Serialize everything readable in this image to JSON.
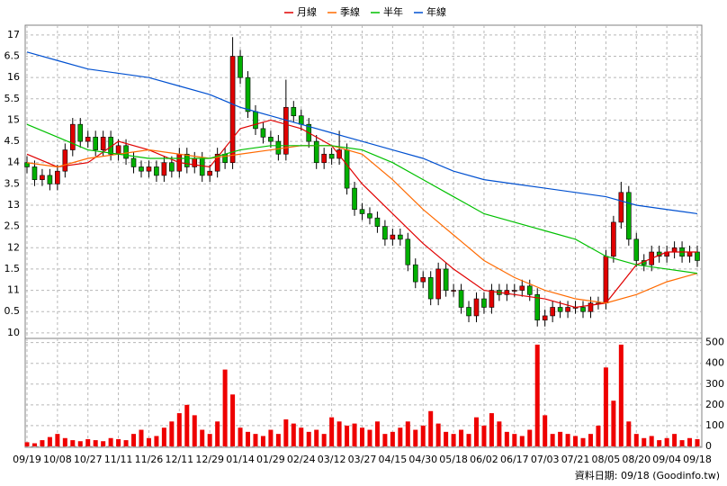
{
  "chart_data": {
    "type": "candlestick",
    "legend": "top",
    "up_color": "#e00000",
    "down_color": "#00b000",
    "volume_color": "#ee0000",
    "footer": "資料日期: 09/18 (Goodinfo.tw)",
    "categories": [
      "09/19",
      null,
      null,
      null,
      "10/08",
      null,
      null,
      null,
      "10/27",
      null,
      null,
      null,
      "11/11",
      null,
      null,
      null,
      "11/26",
      null,
      null,
      null,
      "12/11",
      null,
      null,
      null,
      "12/29",
      null,
      null,
      null,
      "01/14",
      null,
      null,
      null,
      "01/29",
      null,
      null,
      null,
      "02/24",
      null,
      null,
      null,
      "03/12",
      null,
      null,
      null,
      "03/27",
      null,
      null,
      null,
      "04/15",
      null,
      null,
      null,
      "04/30",
      null,
      null,
      null,
      "05/18",
      null,
      null,
      null,
      "06/02",
      null,
      null,
      null,
      "06/17",
      null,
      null,
      null,
      "07/03",
      null,
      null,
      null,
      "07/21",
      null,
      null,
      null,
      "08/05",
      null,
      null,
      null,
      "08/20",
      null,
      null,
      null,
      "09/04",
      null,
      null,
      null,
      "09/18"
    ],
    "open": [
      14.0,
      13.9,
      13.6,
      13.7,
      13.5,
      13.8,
      14.3,
      14.9,
      14.5,
      14.6,
      14.3,
      14.6,
      14.2,
      14.4,
      14.1,
      13.9,
      13.8,
      13.9,
      13.7,
      14.0,
      13.8,
      14.2,
      13.9,
      14.1,
      13.7,
      13.8,
      14.2,
      14.0,
      16.5,
      16.0,
      15.2,
      14.8,
      14.6,
      14.5,
      14.2,
      15.3,
      15.1,
      14.9,
      14.5,
      14.0,
      14.2,
      14.1,
      14.3,
      13.4,
      12.9,
      12.8,
      12.7,
      12.5,
      12.2,
      12.3,
      12.2,
      11.6,
      11.2,
      11.3,
      10.8,
      11.5,
      11.0,
      11.0,
      10.6,
      10.4,
      10.8,
      10.6,
      11.0,
      10.9,
      11.0,
      11.0,
      11.1,
      10.9,
      10.3,
      10.4,
      10.6,
      10.5,
      10.6,
      10.6,
      10.5,
      10.7,
      10.7,
      11.8,
      12.6,
      13.3,
      12.2,
      11.7,
      11.6,
      11.9,
      11.8,
      11.9,
      12.0,
      11.8,
      11.9
    ],
    "high": [
      14.15,
      14.05,
      13.85,
      13.85,
      13.95,
      14.45,
      15.05,
      15.05,
      14.75,
      14.75,
      14.75,
      14.75,
      14.55,
      14.55,
      14.25,
      14.05,
      14.05,
      14.05,
      14.15,
      14.15,
      14.35,
      14.35,
      14.25,
      14.25,
      13.95,
      14.35,
      14.35,
      16.95,
      16.65,
      16.15,
      15.35,
      14.95,
      14.75,
      14.65,
      15.95,
      15.45,
      15.25,
      15.05,
      14.65,
      14.35,
      14.35,
      14.75,
      14.45,
      13.55,
      13.05,
      12.95,
      12.85,
      12.65,
      12.45,
      12.45,
      12.35,
      11.75,
      11.45,
      11.45,
      11.65,
      11.65,
      11.15,
      11.15,
      10.75,
      10.95,
      10.95,
      11.15,
      11.15,
      11.15,
      11.15,
      11.25,
      11.25,
      11.05,
      10.55,
      10.75,
      10.75,
      10.75,
      10.75,
      10.75,
      10.85,
      10.85,
      11.95,
      12.75,
      13.55,
      13.45,
      12.35,
      11.85,
      12.05,
      12.05,
      12.05,
      12.15,
      12.15,
      12.05,
      12.05
    ],
    "low": [
      13.75,
      13.45,
      13.45,
      13.35,
      13.35,
      13.65,
      14.15,
      14.35,
      14.35,
      14.15,
      14.15,
      14.05,
      14.05,
      13.95,
      13.75,
      13.65,
      13.65,
      13.55,
      13.55,
      13.65,
      13.65,
      13.75,
      13.75,
      13.55,
      13.55,
      13.65,
      13.85,
      13.85,
      15.85,
      15.05,
      14.65,
      14.45,
      14.35,
      14.05,
      14.05,
      14.95,
      14.75,
      14.35,
      13.85,
      13.85,
      13.95,
      13.95,
      13.25,
      12.75,
      12.65,
      12.55,
      12.35,
      12.05,
      12.05,
      12.05,
      11.45,
      11.05,
      11.05,
      10.65,
      10.65,
      10.85,
      10.85,
      10.45,
      10.25,
      10.25,
      10.45,
      10.45,
      10.75,
      10.75,
      10.85,
      10.85,
      10.75,
      10.15,
      10.15,
      10.25,
      10.35,
      10.35,
      10.45,
      10.35,
      10.35,
      10.55,
      10.55,
      11.65,
      12.45,
      12.05,
      11.55,
      11.45,
      11.45,
      11.65,
      11.65,
      11.75,
      11.65,
      11.65,
      11.55
    ],
    "close": [
      13.9,
      13.6,
      13.7,
      13.5,
      13.8,
      14.3,
      14.9,
      14.5,
      14.6,
      14.3,
      14.6,
      14.2,
      14.4,
      14.1,
      13.9,
      13.8,
      13.9,
      13.7,
      14.0,
      13.8,
      14.2,
      13.9,
      14.1,
      13.7,
      13.8,
      14.2,
      14.0,
      16.5,
      16.0,
      15.2,
      14.8,
      14.6,
      14.5,
      14.2,
      15.3,
      15.1,
      14.9,
      14.5,
      14.0,
      14.2,
      14.1,
      14.3,
      13.4,
      12.9,
      12.8,
      12.7,
      12.5,
      12.2,
      12.3,
      12.2,
      11.6,
      11.2,
      11.3,
      10.8,
      11.5,
      11.0,
      11.0,
      10.6,
      10.4,
      10.8,
      10.6,
      11.0,
      10.9,
      11.0,
      11.0,
      11.1,
      10.9,
      10.3,
      10.4,
      10.6,
      10.5,
      10.6,
      10.6,
      10.5,
      10.7,
      10.7,
      11.8,
      12.6,
      13.3,
      12.2,
      11.7,
      11.6,
      11.9,
      11.8,
      11.9,
      12.0,
      11.8,
      11.9,
      11.7
    ],
    "volume": [
      20,
      15,
      30,
      45,
      60,
      40,
      30,
      25,
      35,
      30,
      25,
      40,
      35,
      30,
      60,
      80,
      40,
      50,
      90,
      120,
      160,
      200,
      150,
      80,
      60,
      120,
      370,
      250,
      90,
      70,
      60,
      50,
      80,
      60,
      130,
      110,
      90,
      70,
      80,
      60,
      140,
      120,
      100,
      110,
      90,
      80,
      120,
      60,
      70,
      90,
      120,
      80,
      100,
      170,
      110,
      70,
      60,
      80,
      60,
      140,
      100,
      160,
      120,
      70,
      60,
      50,
      80,
      490,
      150,
      60,
      70,
      60,
      50,
      40,
      60,
      100,
      380,
      220,
      490,
      120,
      60,
      40,
      50,
      30,
      40,
      60,
      30,
      40,
      35
    ],
    "ylim": [
      9.87,
      17.23
    ],
    "yticks": [
      10,
      {
        "value": 10.5,
        "label": "0.5"
      },
      11,
      {
        "value": 11.5,
        "label": "1.5"
      },
      12,
      {
        "value": 12.5,
        "label": "2.5"
      },
      13,
      {
        "value": 13.5,
        "label": "3.5"
      },
      14,
      {
        "value": 14.5,
        "label": "4.5"
      },
      15,
      {
        "value": 15.5,
        "label": "5.5"
      },
      16,
      {
        "value": 16.5,
        "label": "6.5"
      },
      17
    ],
    "y2lim": [
      0,
      520
    ],
    "y2ticks": [
      0,
      100,
      200,
      300,
      400,
      500
    ],
    "grid": true,
    "series": [
      {
        "name": "月線",
        "color": "#e00000",
        "x": [
          0,
          4,
          8,
          12,
          16,
          20,
          24,
          28,
          32,
          36,
          40,
          44,
          48,
          52,
          56,
          60,
          64,
          68,
          72,
          76,
          80,
          84,
          88
        ],
        "values": [
          14.2,
          13.9,
          14.0,
          14.5,
          14.3,
          14.0,
          13.9,
          14.8,
          15.0,
          14.8,
          14.4,
          13.5,
          12.8,
          12.1,
          11.5,
          11.0,
          10.9,
          10.8,
          10.6,
          10.7,
          11.6,
          11.9,
          11.9
        ]
      },
      {
        "name": "季線",
        "color": "#ff6a00",
        "x": [
          0,
          4,
          8,
          12,
          16,
          20,
          24,
          28,
          32,
          36,
          40,
          44,
          48,
          52,
          56,
          60,
          64,
          68,
          72,
          76,
          80,
          84,
          88
        ],
        "values": [
          14.0,
          13.9,
          14.1,
          14.2,
          14.3,
          14.2,
          14.1,
          14.2,
          14.3,
          14.4,
          14.4,
          14.2,
          13.6,
          12.9,
          12.3,
          11.7,
          11.3,
          11.0,
          10.8,
          10.7,
          10.9,
          11.2,
          11.4
        ]
      },
      {
        "name": "半年",
        "color": "#00c000",
        "x": [
          0,
          4,
          8,
          12,
          16,
          20,
          24,
          28,
          32,
          36,
          40,
          44,
          48,
          52,
          56,
          60,
          64,
          68,
          72,
          76,
          80,
          84,
          88
        ],
        "values": [
          14.9,
          14.6,
          14.3,
          14.2,
          14.1,
          14.1,
          14.1,
          14.3,
          14.4,
          14.4,
          14.4,
          14.3,
          14.0,
          13.6,
          13.2,
          12.8,
          12.6,
          12.4,
          12.2,
          11.8,
          11.6,
          11.5,
          11.4
        ]
      },
      {
        "name": "年線",
        "color": "#0050d0",
        "x": [
          0,
          4,
          8,
          12,
          16,
          20,
          24,
          28,
          32,
          36,
          40,
          44,
          48,
          52,
          56,
          60,
          64,
          68,
          72,
          76,
          80,
          84,
          88
        ],
        "values": [
          16.6,
          16.4,
          16.2,
          16.1,
          16.0,
          15.8,
          15.6,
          15.3,
          15.1,
          14.9,
          14.7,
          14.5,
          14.3,
          14.1,
          13.8,
          13.6,
          13.5,
          13.4,
          13.3,
          13.2,
          13.0,
          12.9,
          12.8
        ]
      }
    ]
  }
}
